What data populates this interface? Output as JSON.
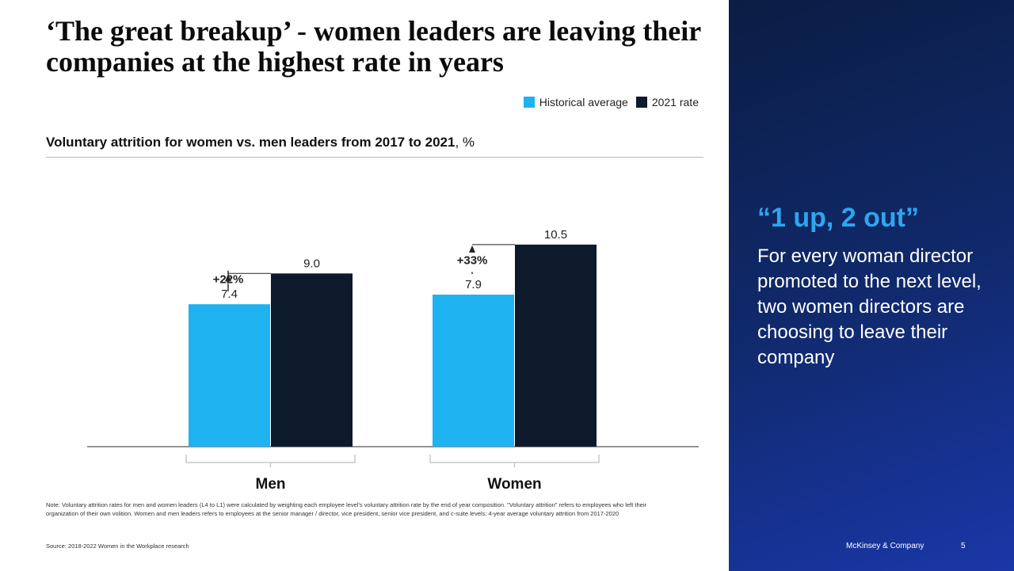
{
  "slide": {
    "title": "‘The great breakup’ - women leaders are leaving their companies at the highest rate in years",
    "chart_heading": "Voluntary attrition for women vs. men leaders from 2017 to 2021",
    "chart_unit": ", %",
    "note": "Note: Voluntary attrition rates for men and women leaders (L4 to L1) were calculated by weighting each employee level's voluntary attrition rate by the end of year composition. \"Voluntary attrition\" refers to employees who left their organization of their own volition. Women and men leaders refers to employees at the senior manager / director, vice president, senior vice president, and c-suite levels; 4-year average voluntary attrition from 2017-2020",
    "source": "Source: 2018-2022 Women in the Workplace research",
    "brand": "McKinsey & Company",
    "page_number": "5"
  },
  "side_panel": {
    "quote": "“1 up, 2 out”",
    "body": "For every woman director promoted to the next level, two women directors are choosing to leave their company"
  },
  "colors": {
    "historical": "#1fb2f0",
    "rate_2021": "#0c1a2c",
    "panel_dark": "#0b1d44",
    "panel_light": "#1a37a8",
    "quote": "#2ea6ee"
  },
  "chart_data": {
    "type": "bar",
    "categories": [
      "Men",
      "Women"
    ],
    "series": [
      {
        "name": "Historical average",
        "values": [
          7.4,
          7.9
        ],
        "labels": [
          "7.4",
          "7.9"
        ],
        "color": "#1fb2f0"
      },
      {
        "name": "2021 rate",
        "values": [
          9.0,
          10.5
        ],
        "labels": [
          "9.0",
          "10.5"
        ],
        "color": "#0c1a2c"
      }
    ],
    "annotations": [
      "+22%",
      "+33%"
    ],
    "legend_position": "top-right",
    "grid": false
  }
}
